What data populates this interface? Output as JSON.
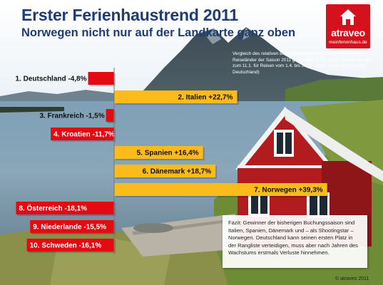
{
  "header": {
    "title": "Erster Ferienhaustrend 2011",
    "subtitle": "Norwegen nicht nur auf der Landkarte ganz oben"
  },
  "logo": {
    "name": "atraveo",
    "domain": "meinferienhaus.de",
    "icon": "house-icon"
  },
  "note": "Vergleich des relativen Buchungsvolumens der zehn wichtigsten Reiseländer der Saison 2011 gegenüber 2010. Basis: Buchungen bis zum 11.1. für Reisen vom 1.4. bis 31.10. eines Jahres (Quellmarkt Deutschland)",
  "fazit": "Fazit: Gewinner der bisherigen Buchungssaison sind Italien, Spanien, Dänemark und – als Shootingstar – Norwegen. Deutschland kann seinen ersten Platz in der Rangliste verteidigen, muss aber nach Jahren des Wachstums erstmals Verluste hinnehmen.",
  "copyright": "© atraveo 2011",
  "colors": {
    "negative": "#e50a12",
    "positive": "#fbbb1a",
    "title": "#1f3d72",
    "logo": "#d5111d"
  },
  "chart_data": {
    "type": "bar",
    "orientation": "horizontal",
    "unit": "%",
    "xlim": [
      -20,
      42
    ],
    "categories": [
      "Deutschland",
      "Italien",
      "Frankreich",
      "Kroatien",
      "Spanien",
      "Dänemark",
      "Norwegen",
      "Österreich",
      "Niederlande",
      "Schweden"
    ],
    "values": [
      -4.8,
      22.7,
      -1.5,
      -11.7,
      16.4,
      18.7,
      39.3,
      -18.1,
      -15.5,
      -16.1
    ],
    "labels": [
      "1. Deutschland -4,8%",
      "2. Italien +22,7%",
      "3. Frankreich -1,5%",
      "4. Kroatien -11,7%",
      "5. Spanien +16,4%",
      "6. Dänemark +18,7%",
      "7. Norwegen +39,3%",
      "8. Österreich -18,1%",
      "9. Niederlande -15,5%",
      "10. Schweden -16,1%"
    ]
  }
}
